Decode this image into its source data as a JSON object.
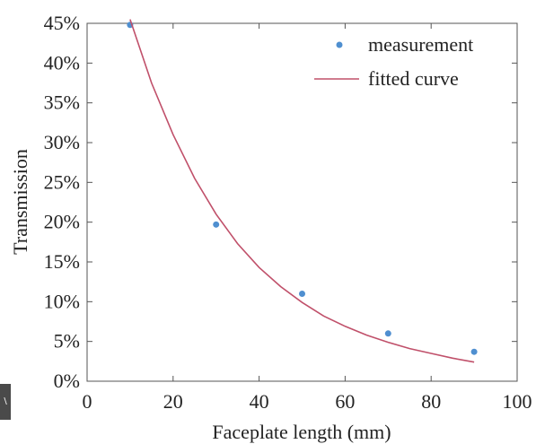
{
  "chart_data": {
    "type": "scatter",
    "xlabel": "Faceplate length (mm)",
    "ylabel": "Transmission",
    "xlim": [
      0,
      100
    ],
    "ylim": [
      0,
      45
    ],
    "x_ticks": [
      0,
      20,
      40,
      60,
      80,
      100
    ],
    "y_ticks": [
      0,
      5,
      10,
      15,
      20,
      25,
      30,
      35,
      40,
      45
    ],
    "y_tick_labels": [
      "0%",
      "5%",
      "10%",
      "15%",
      "20%",
      "25%",
      "30%",
      "35%",
      "40%",
      "45%"
    ],
    "grid": false,
    "legend": "top-right",
    "series": [
      {
        "name": "measurement",
        "kind": "scatter",
        "color": "#4f8fd0",
        "x": [
          10,
          30,
          50,
          70,
          90
        ],
        "y": [
          44.8,
          19.7,
          11.0,
          6.0,
          3.7
        ]
      },
      {
        "name": "fitted curve",
        "kind": "line",
        "color": "#c0506a",
        "x": [
          10,
          15,
          20,
          25,
          30,
          35,
          40,
          45,
          50,
          55,
          60,
          65,
          70,
          75,
          80,
          85,
          90
        ],
        "y": [
          45.5,
          37.5,
          31.0,
          25.5,
          21.0,
          17.3,
          14.3,
          11.9,
          9.9,
          8.2,
          6.9,
          5.8,
          4.9,
          4.1,
          3.5,
          2.9,
          2.4
        ]
      }
    ]
  },
  "corner_tab": {
    "text": "\\"
  }
}
